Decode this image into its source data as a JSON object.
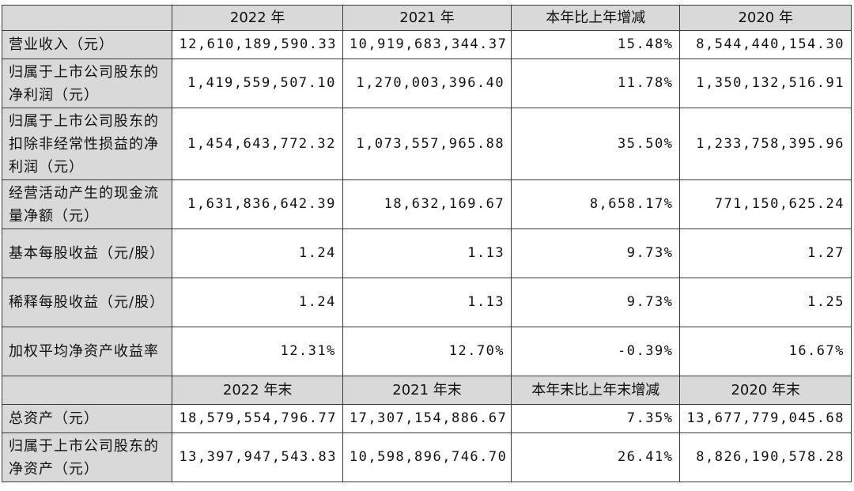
{
  "header1": [
    "",
    "2022 年",
    "2021 年",
    "本年比上年增减",
    "2020 年"
  ],
  "rows1": [
    {
      "label": "营业收入（元）",
      "values": [
        "12,610,189,590.33",
        "10,919,683,344.37",
        "15.48%",
        "8,544,440,154.30"
      ]
    },
    {
      "label": "归属于上市公司股东的净利润（元）",
      "values": [
        "1,419,559,507.10",
        "1,270,003,396.40",
        "11.78%",
        "1,350,132,516.91"
      ]
    },
    {
      "label": "归属于上市公司股东的扣除非经常性损益的净利润（元）",
      "values": [
        "1,454,643,772.32",
        "1,073,557,965.88",
        "35.50%",
        "1,233,758,395.96"
      ]
    },
    {
      "label": "经营活动产生的现金流量净额（元）",
      "values": [
        "1,631,836,642.39",
        "18,632,169.67",
        "8,658.17%",
        "771,150,625.24"
      ]
    },
    {
      "label": "基本每股收益（元/股）",
      "values": [
        "1.24",
        "1.13",
        "9.73%",
        "1.27"
      ]
    },
    {
      "label": "稀释每股收益（元/股）",
      "values": [
        "1.24",
        "1.13",
        "9.73%",
        "1.25"
      ]
    },
    {
      "label": "加权平均净资产收益率",
      "values": [
        "12.31%",
        "12.70%",
        "-0.39%",
        "16.67%"
      ]
    }
  ],
  "header2": [
    "",
    "2022 年末",
    "2021 年末",
    "本年末比上年末增减",
    "2020 年末"
  ],
  "rows2": [
    {
      "label": "总资产（元）",
      "values": [
        "18,579,554,796.77",
        "17,307,154,886.67",
        "7.35%",
        "13,677,779,045.68"
      ]
    },
    {
      "label": "归属于上市公司股东的净资产（元）",
      "values": [
        "13,397,947,543.83",
        "10,598,896,746.70",
        "26.41%",
        "8,826,190,578.28"
      ]
    }
  ]
}
